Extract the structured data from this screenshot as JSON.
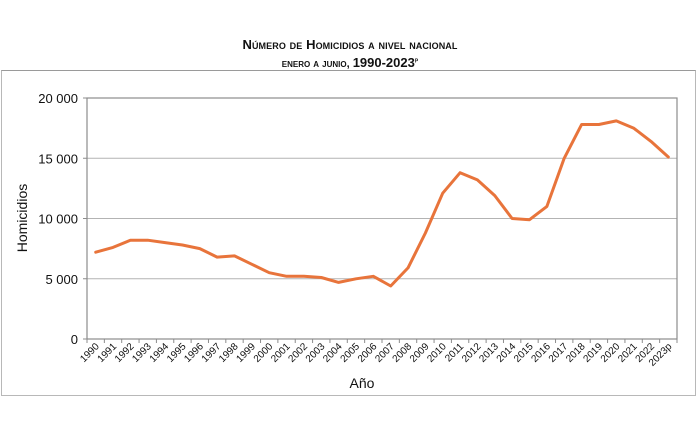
{
  "header": {
    "title_line1": "Número de Homicidios a nivel nacional",
    "title_line2_text": "enero a junio, ",
    "title_line2_years": "1990-2023",
    "title_line2_sup": "p"
  },
  "chart_data": {
    "type": "line",
    "title": "Número de Homicidios a nivel nacional",
    "subtitle": "enero a junio, 1990-2023p",
    "xlabel": "Año",
    "ylabel": "Homicidios",
    "ylim": [
      0,
      20000
    ],
    "yticks": [
      0,
      5000,
      10000,
      15000,
      20000
    ],
    "ytick_labels": [
      "0",
      "5 000",
      "10 000",
      "15 000",
      "20 000"
    ],
    "grid": "horizontal",
    "legend": "none",
    "line_color": "#E8743B",
    "categories": [
      "1990",
      "1991",
      "1992",
      "1993",
      "1994",
      "1995",
      "1996",
      "1997",
      "1998",
      "1999",
      "2000",
      "2001",
      "2002",
      "2003",
      "2004",
      "2005",
      "2006",
      "2007",
      "2008",
      "2009",
      "2010",
      "2011",
      "2012",
      "2013",
      "2014",
      "2015",
      "2016",
      "2017",
      "2018",
      "2019",
      "2020",
      "2021",
      "2022",
      "2023p"
    ],
    "series": [
      {
        "name": "Homicidios",
        "values": [
          7200,
          7600,
          8200,
          8200,
          8000,
          7800,
          7500,
          6800,
          6900,
          6200,
          5500,
          5200,
          5200,
          5100,
          4700,
          5000,
          5200,
          4400,
          5900,
          8800,
          12100,
          13800,
          13200,
          11900,
          10000,
          9900,
          11000,
          15000,
          17800,
          17800,
          18100,
          17500,
          16400,
          15100
        ]
      }
    ]
  }
}
